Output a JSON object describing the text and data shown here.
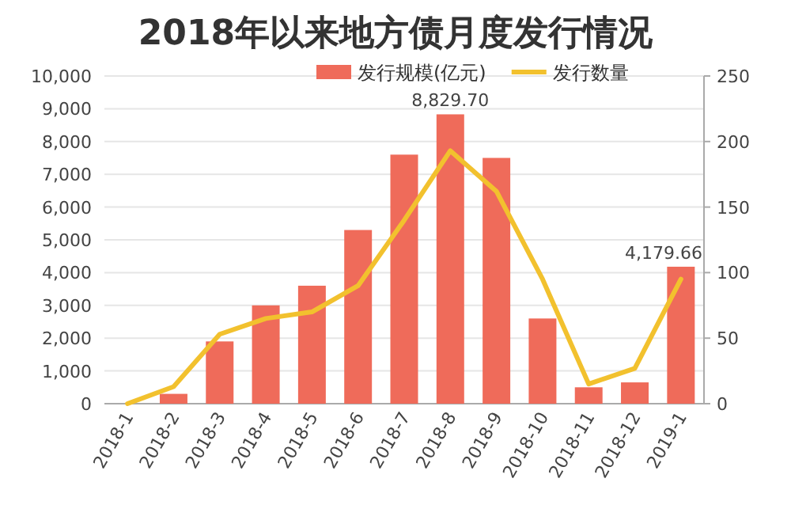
{
  "chart_data": {
    "type": "bar",
    "title": "2018年以来地方债月度发行情况",
    "categories": [
      "2018-1",
      "2018-2",
      "2018-3",
      "2018-4",
      "2018-5",
      "2018-6",
      "2018-7",
      "2018-8",
      "2018-9",
      "2018-10",
      "2018-11",
      "2018-12",
      "2019-1"
    ],
    "series": [
      {
        "name": "发行规模(亿元)",
        "color": "#ef6b5a",
        "values": [
          0,
          300,
          1900,
          3000,
          3600,
          5300,
          7600,
          8829.7,
          7500,
          2600,
          500,
          650,
          4179.66
        ],
        "value_labels": [
          null,
          null,
          null,
          null,
          null,
          null,
          null,
          "8,829.70",
          null,
          null,
          null,
          null,
          "4,179.66"
        ]
      },
      {
        "name": "发行数量",
        "type": "line",
        "axis": "y2",
        "color": "#f2c12e",
        "values": [
          0,
          13,
          53,
          65,
          70,
          90,
          140,
          193,
          162,
          95,
          15,
          27,
          95
        ]
      }
    ],
    "ylim": [
      0,
      10000
    ],
    "yticks": [
      0,
      {
        "value": 1000,
        "label": "1,000"
      },
      {
        "value": 2000,
        "label": "2,000"
      },
      {
        "value": 3000,
        "label": "3,000"
      },
      {
        "value": 4000,
        "label": "4,000"
      },
      {
        "value": 5000,
        "label": "5,000"
      },
      {
        "value": 6000,
        "label": "6,000"
      },
      {
        "value": 7000,
        "label": "7,000"
      },
      {
        "value": 8000,
        "label": "8,000"
      },
      {
        "value": 9000,
        "label": "9,000"
      },
      {
        "value": 10000,
        "label": "10,000"
      }
    ],
    "y2lim": [
      0,
      250
    ],
    "y2ticks": [
      0,
      50,
      100,
      150,
      200,
      250
    ],
    "grid": "y",
    "legend": "top right",
    "marker": "none",
    "line_style": "solid"
  }
}
